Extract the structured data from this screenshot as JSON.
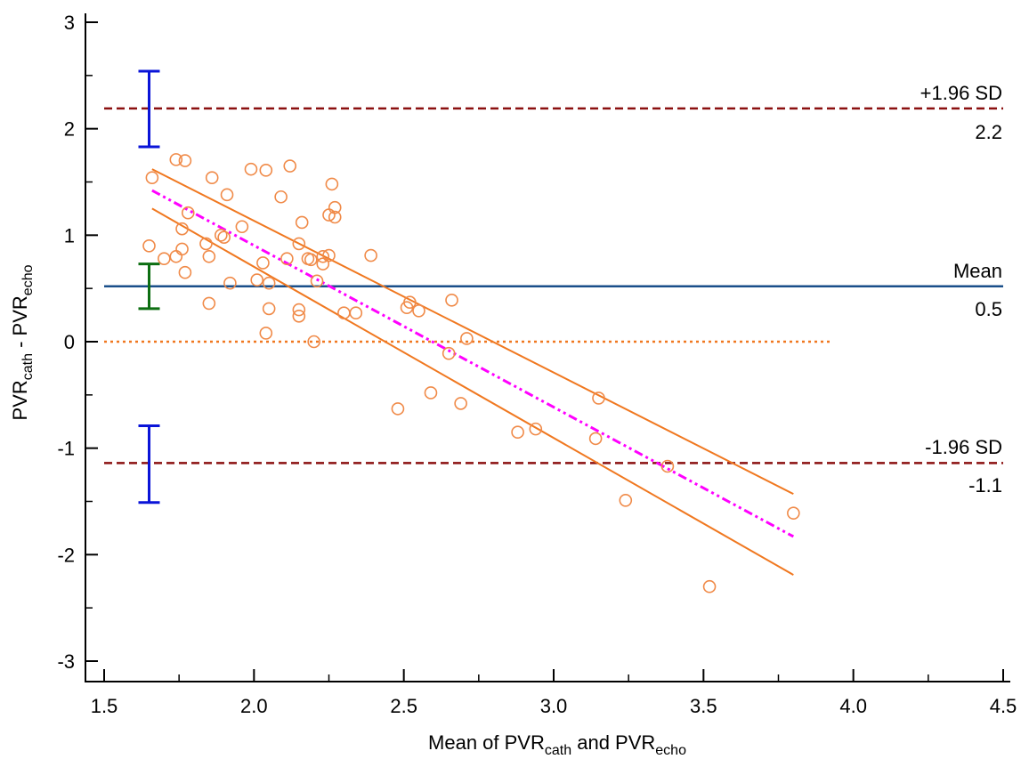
{
  "chart_data": {
    "type": "scatter",
    "title": "",
    "xlabel": {
      "main": "Mean of PVR",
      "sub1": "cath",
      "mid": " and PVR",
      "sub2": "echo"
    },
    "ylabel": {
      "main1": "PVR",
      "sub1": "cath",
      "mid": " - PVR",
      "sub2": "echo"
    },
    "xlim": [
      1.5,
      4.5
    ],
    "ylim": [
      -3,
      3
    ],
    "x_ticks": [
      {
        "value": 1.5,
        "label": "1.5"
      },
      {
        "value": 2.0,
        "label": "2.0"
      },
      {
        "value": 2.5,
        "label": "2.5"
      },
      {
        "value": 3.0,
        "label": "3.0"
      },
      {
        "value": 3.5,
        "label": "3.5"
      },
      {
        "value": 4.0,
        "label": "4.0"
      },
      {
        "value": 4.5,
        "label": "4.5"
      }
    ],
    "y_ticks": [
      {
        "value": -3,
        "label": "-3"
      },
      {
        "value": -2,
        "label": "-2"
      },
      {
        "value": -1,
        "label": "-1"
      },
      {
        "value": 0,
        "label": "0"
      },
      {
        "value": 1,
        "label": "1"
      },
      {
        "value": 2,
        "label": "2"
      },
      {
        "value": 3,
        "label": "3"
      }
    ],
    "points": [
      [
        1.65,
        0.9
      ],
      [
        1.66,
        1.54
      ],
      [
        1.7,
        0.78
      ],
      [
        1.74,
        1.71
      ],
      [
        1.74,
        0.8
      ],
      [
        1.76,
        0.87
      ],
      [
        1.76,
        1.06
      ],
      [
        1.77,
        1.7
      ],
      [
        1.77,
        0.65
      ],
      [
        1.78,
        1.21
      ],
      [
        1.84,
        0.92
      ],
      [
        1.85,
        0.8
      ],
      [
        1.85,
        0.36
      ],
      [
        1.86,
        1.54
      ],
      [
        1.89,
        1.0
      ],
      [
        1.9,
        0.98
      ],
      [
        1.91,
        1.38
      ],
      [
        1.92,
        0.55
      ],
      [
        1.96,
        1.08
      ],
      [
        1.99,
        1.62
      ],
      [
        2.01,
        0.58
      ],
      [
        2.03,
        0.74
      ],
      [
        2.04,
        1.61
      ],
      [
        2.04,
        0.08
      ],
      [
        2.05,
        0.31
      ],
      [
        2.05,
        0.55
      ],
      [
        2.09,
        1.36
      ],
      [
        2.11,
        0.78
      ],
      [
        2.12,
        1.65
      ],
      [
        2.15,
        0.92
      ],
      [
        2.15,
        0.3
      ],
      [
        2.15,
        0.24
      ],
      [
        2.16,
        1.12
      ],
      [
        2.18,
        0.78
      ],
      [
        2.19,
        0.77
      ],
      [
        2.2,
        0.0
      ],
      [
        2.21,
        0.57
      ],
      [
        2.23,
        0.8
      ],
      [
        2.23,
        0.73
      ],
      [
        2.25,
        0.81
      ],
      [
        2.25,
        1.19
      ],
      [
        2.26,
        1.48
      ],
      [
        2.27,
        1.17
      ],
      [
        2.27,
        1.26
      ],
      [
        2.3,
        0.27
      ],
      [
        2.34,
        0.27
      ],
      [
        2.39,
        0.81
      ],
      [
        2.48,
        -0.63
      ],
      [
        2.51,
        0.32
      ],
      [
        2.52,
        0.37
      ],
      [
        2.55,
        0.29
      ],
      [
        2.59,
        -0.48
      ],
      [
        2.65,
        -0.11
      ],
      [
        2.66,
        0.39
      ],
      [
        2.69,
        -0.58
      ],
      [
        2.71,
        0.03
      ],
      [
        2.88,
        -0.85
      ],
      [
        2.94,
        -0.82
      ],
      [
        3.14,
        -0.91
      ],
      [
        3.15,
        -0.53
      ],
      [
        3.24,
        -1.49
      ],
      [
        3.38,
        -1.17
      ],
      [
        3.52,
        -2.3
      ],
      [
        3.8,
        -1.61
      ]
    ],
    "regression": {
      "x": [
        1.66,
        3.8
      ],
      "y": [
        1.42,
        -1.83
      ]
    },
    "ci_upper": {
      "x": [
        1.66,
        3.8
      ],
      "y": [
        1.62,
        -1.43
      ]
    },
    "ci_lower": {
      "x": [
        1.66,
        3.8
      ],
      "y": [
        1.25,
        -2.19
      ]
    },
    "zero_line": {
      "x": [
        1.5,
        3.93
      ],
      "y": 0
    },
    "mean_line": {
      "value": 0.52,
      "label": "Mean",
      "value_label": "0.5"
    },
    "upper_loa": {
      "value": 2.19,
      "label": "+1.96 SD",
      "value_label": "2.2"
    },
    "lower_loa": {
      "value": -1.14,
      "label": "-1.96 SD",
      "value_label": "-1.1"
    },
    "error_bars": [
      {
        "name": "upper-loa-ci",
        "x": 1.65,
        "low": 1.83,
        "high": 2.54,
        "color": "#0a14d8"
      },
      {
        "name": "mean-ci",
        "x": 1.65,
        "low": 0.31,
        "high": 0.73,
        "color": "#0d6e12"
      },
      {
        "name": "lower-loa-ci",
        "x": 1.65,
        "low": -1.51,
        "high": -0.79,
        "color": "#0a14d8"
      }
    ],
    "colors": {
      "points": "#f08a48",
      "ci_lines": "#f07820",
      "regression": "#ff00ff",
      "mean_line": "#1a4f8a",
      "loa_lines": "#8b1010",
      "zero_line": "#f07820"
    }
  }
}
